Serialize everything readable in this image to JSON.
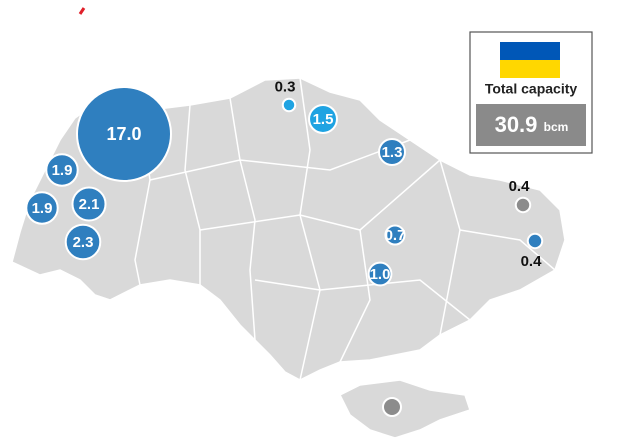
{
  "title": "Total capacity",
  "total": {
    "value": 30.9,
    "unit": "bcm"
  },
  "storages": [
    {
      "value": 17,
      "label": "17.0",
      "color": "#2f7fbf"
    },
    {
      "value": 1.9,
      "label": "1.9",
      "color": "#2f7fbf"
    },
    {
      "value": 1.9,
      "label": "1.9",
      "color": "#2f7fbf"
    },
    {
      "value": 2.1,
      "label": "2.1",
      "color": "#2f7fbf"
    },
    {
      "value": 2.3,
      "label": "2.3",
      "color": "#2f7fbf"
    },
    {
      "value": 0.3,
      "label": "0.3",
      "color": "#1fa3e2"
    },
    {
      "value": 1.5,
      "label": "1.5",
      "color": "#1fa3e2"
    },
    {
      "value": 1.3,
      "label": "1.3",
      "color": "#2f7fbf"
    },
    {
      "value": 0.7,
      "label": "0.7",
      "color": "#2f7fbf"
    },
    {
      "value": 1.0,
      "label": "1.0",
      "color": "#2f7fbf"
    },
    {
      "value": 0.4,
      "label": "0.4",
      "color": "#8c8c8c"
    },
    {
      "value": 0.4,
      "label": "0.4",
      "color": "#2f7fbf"
    }
  ]
}
